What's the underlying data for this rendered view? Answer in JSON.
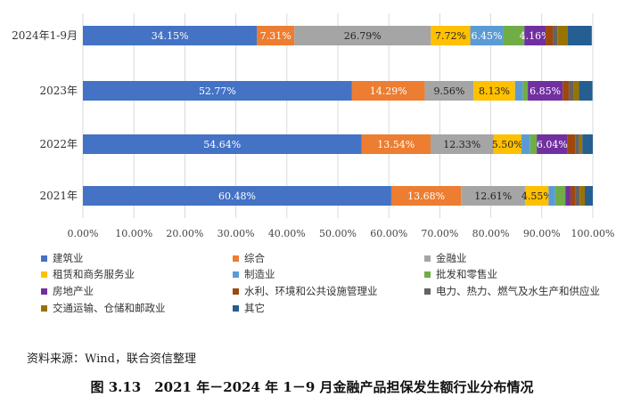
{
  "chart_data": {
    "type": "bar",
    "orientation": "horizontal",
    "stacked": true,
    "categories": [
      "2024年1-9月",
      "2023年",
      "2022年",
      "2021年"
    ],
    "series": [
      {
        "name": "建筑业",
        "color": "#4472C4",
        "values": [
          34.15,
          52.77,
          54.64,
          60.48
        ],
        "labels": [
          "34.15%",
          "52.77%",
          "54.64%",
          "60.48%"
        ]
      },
      {
        "name": "综合",
        "color": "#ED7D31",
        "values": [
          7.31,
          14.29,
          13.54,
          13.68
        ],
        "labels": [
          "7.31%",
          "14.29%",
          "13.54%",
          "13.68%"
        ]
      },
      {
        "name": "金融业",
        "color": "#A5A5A5",
        "values": [
          26.79,
          9.56,
          12.33,
          12.61
        ],
        "labels": [
          "26.79%",
          "9.56%",
          "12.33%",
          "12.61%"
        ]
      },
      {
        "name": "租赁和商务服务业",
        "color": "#FFC000",
        "values": [
          7.72,
          8.13,
          5.5,
          4.55
        ],
        "labels": [
          "7.72%",
          "8.13%",
          "5.50%",
          "4.55%"
        ]
      },
      {
        "name": "制造业",
        "color": "#5B9BD5",
        "values": [
          6.45,
          1.5,
          1.7,
          1.3
        ],
        "labels": [
          "6.45%",
          "",
          "",
          ""
        ]
      },
      {
        "name": "批发和零售业",
        "color": "#70AD47",
        "values": [
          4.16,
          1.0,
          1.3,
          2.0
        ],
        "labels": [
          "",
          "",
          "",
          ""
        ]
      },
      {
        "name": "房地产业",
        "color": "#7030A0",
        "values": [
          4.16,
          6.85,
          6.04,
          1.0
        ],
        "labels": [
          "4.16%",
          "6.85%",
          "6.04%",
          ""
        ]
      },
      {
        "name": "水利、环境和公共设施管理业",
        "color": "#9E480E",
        "values": [
          1.5,
          1.2,
          1.5,
          1.0
        ],
        "labels": [
          "",
          "",
          "",
          ""
        ]
      },
      {
        "name": "电力、热力、燃气及水生产和供应业",
        "color": "#636363",
        "values": [
          0.8,
          1.0,
          0.8,
          0.8
        ],
        "labels": [
          "",
          "",
          "",
          ""
        ]
      },
      {
        "name": "交通运输、仓储和邮政业",
        "color": "#997300",
        "values": [
          2.0,
          1.0,
          0.6,
          1.0
        ],
        "labels": [
          "",
          "",
          "",
          ""
        ]
      },
      {
        "name": "其它",
        "color": "#255E91",
        "values": [
          4.76,
          2.63,
          2.05,
          1.58
        ],
        "labels": [
          "",
          "",
          "",
          ""
        ]
      }
    ],
    "xlim": [
      0,
      100
    ],
    "xticks": [
      0,
      10,
      20,
      30,
      40,
      50,
      60,
      70,
      80,
      90,
      100
    ],
    "xtick_labels": [
      "0.00%",
      "10.00%",
      "20.00%",
      "30.00%",
      "40.00%",
      "50.00%",
      "60.00%",
      "70.00%",
      "80.00%",
      "90.00%",
      "100.00%"
    ],
    "xgrid": true,
    "legend_position": "bottom"
  },
  "source_text": "资料来源：Wind，联合资信整理",
  "caption": "图 3.13　2021 年－2024 年 1－9 月金融产品担保发生额行业分布情况"
}
